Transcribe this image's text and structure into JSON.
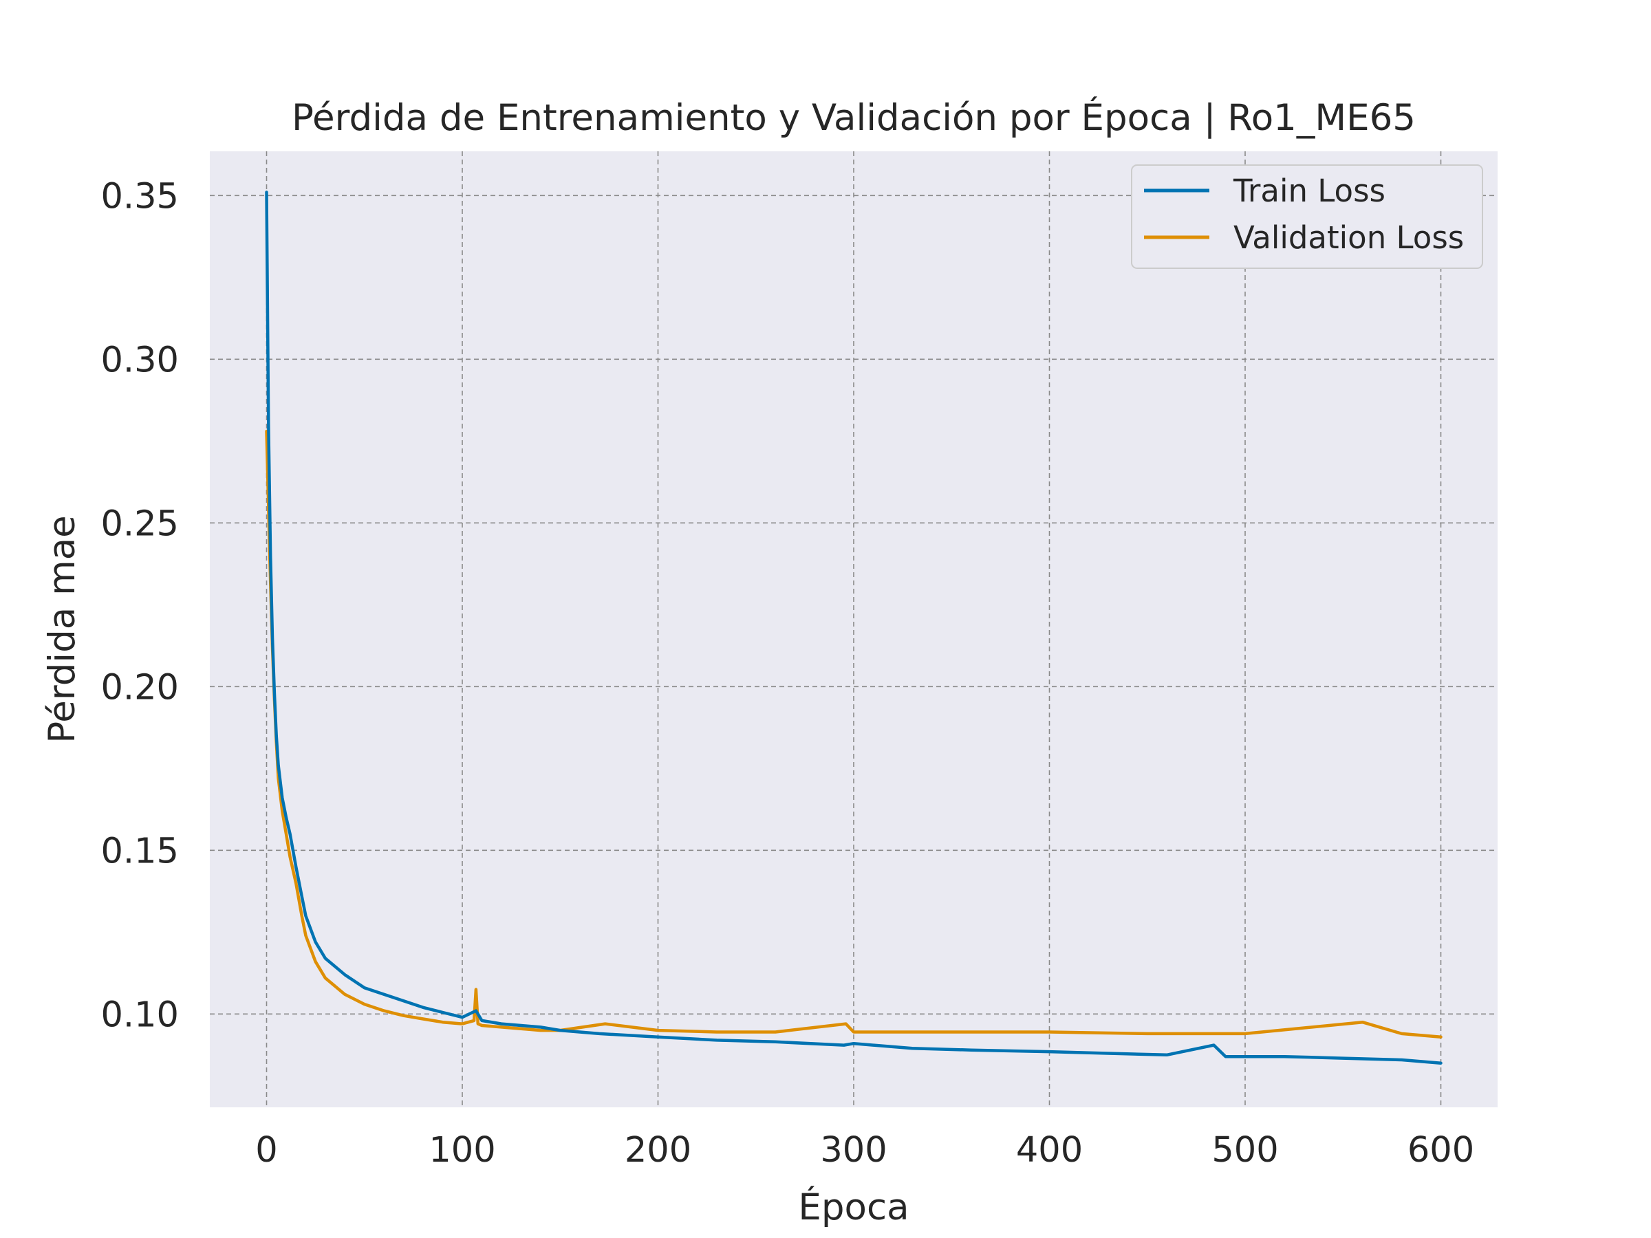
{
  "chart_data": {
    "type": "line",
    "title": "Pérdida de Entrenamiento y Validación por Época | Ro1_ME65",
    "xlabel": "Época",
    "ylabel": "Pérdida mae",
    "xlim": [
      -29,
      629
    ],
    "ylim": [
      0.0715,
      0.3635
    ],
    "xticks": [
      0,
      100,
      200,
      300,
      400,
      500,
      600
    ],
    "xtick_labels": [
      "0",
      "100",
      "200",
      "300",
      "400",
      "500",
      "600"
    ],
    "yticks": [
      0.1,
      0.15,
      0.2,
      0.25,
      0.3,
      0.35
    ],
    "ytick_labels": [
      "0.10",
      "0.15",
      "0.20",
      "0.25",
      "0.30",
      "0.35"
    ],
    "grid": true,
    "legend_position": "upper-right",
    "series": [
      {
        "name": "Train Loss",
        "color": "#0173b2",
        "x": [
          0,
          1,
          2,
          3,
          4,
          5,
          6,
          8,
          10,
          12,
          15,
          18,
          20,
          25,
          30,
          40,
          50,
          60,
          70,
          80,
          90,
          100,
          107,
          110,
          120,
          130,
          140,
          150,
          170,
          200,
          230,
          260,
          295,
          300,
          330,
          360,
          400,
          430,
          460,
          484,
          490,
          520,
          550,
          580,
          600
        ],
        "y": [
          0.351,
          0.28,
          0.24,
          0.215,
          0.198,
          0.185,
          0.176,
          0.166,
          0.16,
          0.155,
          0.145,
          0.136,
          0.13,
          0.122,
          0.117,
          0.112,
          0.108,
          0.106,
          0.104,
          0.102,
          0.1005,
          0.099,
          0.101,
          0.098,
          0.097,
          0.0965,
          0.096,
          0.095,
          0.094,
          0.093,
          0.092,
          0.0915,
          0.0905,
          0.091,
          0.0895,
          0.089,
          0.0885,
          0.088,
          0.0875,
          0.0905,
          0.087,
          0.087,
          0.0865,
          0.086,
          0.085
        ]
      },
      {
        "name": "Validation Loss",
        "color": "#de8f05",
        "x": [
          0,
          1,
          2,
          3,
          4,
          5,
          6,
          8,
          10,
          12,
          15,
          18,
          20,
          25,
          30,
          40,
          50,
          60,
          70,
          80,
          90,
          100,
          106,
          107,
          108,
          110,
          120,
          130,
          140,
          150,
          173,
          200,
          230,
          260,
          296,
          300,
          350,
          400,
          450,
          500,
          560,
          580,
          600
        ],
        "y": [
          0.278,
          0.255,
          0.232,
          0.212,
          0.196,
          0.183,
          0.172,
          0.162,
          0.155,
          0.148,
          0.14,
          0.13,
          0.124,
          0.116,
          0.111,
          0.106,
          0.103,
          0.101,
          0.0995,
          0.0985,
          0.0975,
          0.097,
          0.098,
          0.1075,
          0.097,
          0.0965,
          0.096,
          0.0955,
          0.095,
          0.095,
          0.097,
          0.095,
          0.0945,
          0.0945,
          0.097,
          0.0945,
          0.0945,
          0.0945,
          0.094,
          0.094,
          0.0975,
          0.094,
          0.093
        ]
      }
    ]
  }
}
